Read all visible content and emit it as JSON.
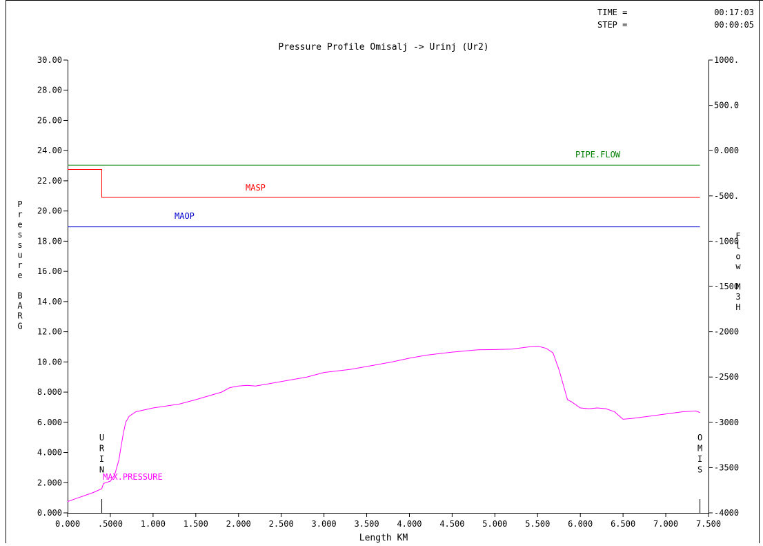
{
  "header": {
    "time_label": "TIME =",
    "time_value": "00:17:03",
    "step_label": "STEP =",
    "step_value": "00:00:05"
  },
  "chart_data": {
    "type": "line",
    "title": "Pressure Profile Omisalj -> Urinj (Ur2)",
    "xlabel": "Length KM",
    "ylabel_left": "Pressure BARG",
    "ylabel_right": "Flow M3H",
    "xlim": [
      0,
      7.5
    ],
    "ylim_left": [
      0,
      30
    ],
    "ylim_right": [
      -4000,
      1000
    ],
    "x_ticks": [
      "0.000",
      ".5000",
      "1.000",
      "1.500",
      "2.000",
      "2.500",
      "3.000",
      "3.500",
      "4.000",
      "4.500",
      "5.000",
      "5.500",
      "6.000",
      "6.500",
      "7.000",
      "7.500"
    ],
    "x_tick_values": [
      0,
      0.5,
      1,
      1.5,
      2,
      2.5,
      3,
      3.5,
      4,
      4.5,
      5,
      5.5,
      6,
      6.5,
      7,
      7.5
    ],
    "y_left_ticks": [
      "0.000",
      "2.000",
      "4.000",
      "6.000",
      "8.000",
      "10.00",
      "12.00",
      "14.00",
      "16.00",
      "18.00",
      "20.00",
      "22.00",
      "24.00",
      "26.00",
      "28.00",
      "30.00"
    ],
    "y_left_tick_values": [
      0,
      2,
      4,
      6,
      8,
      10,
      12,
      14,
      16,
      18,
      20,
      22,
      24,
      26,
      28,
      30
    ],
    "y_right_ticks": [
      "-4000",
      "-3500",
      "-3000",
      "-2500",
      "-2000",
      "-1500",
      "-1000",
      "-500.",
      "0.000",
      "500.0",
      "1000."
    ],
    "y_right_tick_values": [
      -4000,
      -3500,
      -3000,
      -2500,
      -2000,
      -1500,
      -1000,
      -500,
      0,
      500,
      1000
    ],
    "grid": false,
    "series": [
      {
        "name": "PIPE.FLOW",
        "axis": "right",
        "color": "#008000",
        "x": [
          0,
          7.4
        ],
        "y": [
          -160,
          -160
        ]
      },
      {
        "name": "MASP",
        "axis": "left",
        "color": "#ff0000",
        "x": [
          0,
          0.4,
          0.4,
          7.4
        ],
        "y": [
          22.75,
          22.75,
          20.9,
          20.9
        ]
      },
      {
        "name": "MAOP",
        "axis": "left",
        "color": "#0000cc",
        "x": [
          0,
          7.4
        ],
        "y": [
          18.95,
          18.95
        ]
      },
      {
        "name": "MAX.PRESSURE",
        "axis": "left",
        "color": "#ff00ff",
        "x": [
          0,
          0.1,
          0.2,
          0.3,
          0.4,
          0.42,
          0.5,
          0.55,
          0.6,
          0.62,
          0.65,
          0.68,
          0.72,
          0.8,
          1.0,
          1.3,
          1.5,
          1.8,
          1.9,
          2.0,
          2.1,
          2.2,
          2.5,
          2.8,
          3.0,
          3.3,
          3.6,
          3.8,
          4.0,
          4.2,
          4.5,
          4.8,
          5.0,
          5.2,
          5.4,
          5.5,
          5.6,
          5.68,
          5.75,
          5.8,
          5.85,
          5.9,
          6.0,
          6.1,
          6.2,
          6.3,
          6.4,
          6.5,
          6.6,
          6.8,
          7.0,
          7.2,
          7.35,
          7.4
        ],
        "y": [
          0.75,
          0.95,
          1.15,
          1.35,
          1.6,
          1.95,
          2.1,
          2.5,
          3.5,
          4.2,
          5.2,
          6.0,
          6.4,
          6.7,
          6.95,
          7.2,
          7.5,
          8.0,
          8.3,
          8.4,
          8.45,
          8.4,
          8.7,
          9.0,
          9.3,
          9.5,
          9.8,
          10.0,
          10.25,
          10.45,
          10.65,
          10.8,
          10.82,
          10.85,
          11.0,
          11.05,
          10.9,
          10.6,
          9.5,
          8.5,
          7.5,
          7.35,
          6.95,
          6.9,
          6.95,
          6.9,
          6.7,
          6.2,
          6.25,
          6.4,
          6.55,
          6.7,
          6.75,
          6.65
        ]
      }
    ],
    "annotations": [
      {
        "text": "PIPE.FLOW",
        "series": "PIPE.FLOW"
      },
      {
        "text": "MASP",
        "series": "MASP"
      },
      {
        "text": "MAOP",
        "series": "MAOP"
      },
      {
        "text": "MAX.PRESSURE",
        "series": "MAX.PRESSURE"
      }
    ],
    "markers": [
      {
        "name": "URIN",
        "x": 0.4
      },
      {
        "name": "OMIS",
        "x": 7.4
      }
    ]
  }
}
